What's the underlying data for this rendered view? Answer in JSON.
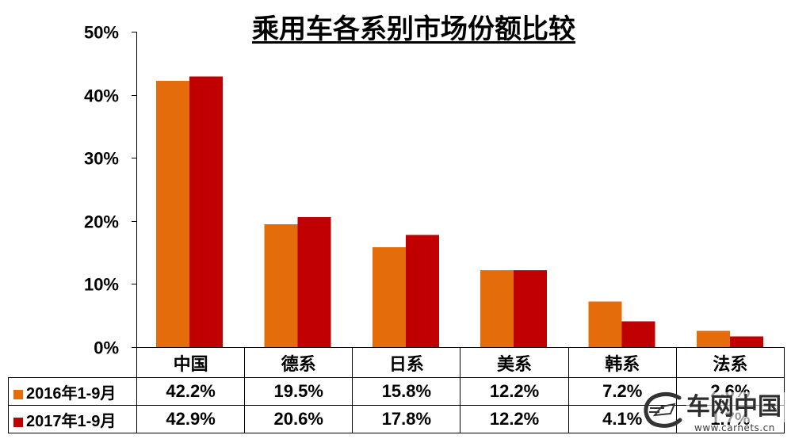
{
  "chart_data": {
    "type": "bar",
    "title": "乘用车各系别市场份额比较",
    "categories": [
      "中国",
      "德系",
      "日系",
      "美系",
      "韩系",
      "法系"
    ],
    "series": [
      {
        "name": "2016年1-9月",
        "color": "#E46C0A",
        "values": [
          42.2,
          19.5,
          15.8,
          12.2,
          7.2,
          2.6
        ],
        "labels": [
          "42.2%",
          "19.5%",
          "15.8%",
          "12.2%",
          "7.2%",
          "2.6%"
        ]
      },
      {
        "name": "2017年1-9月",
        "color": "#C00000",
        "values": [
          42.9,
          20.6,
          17.8,
          12.2,
          4.1,
          1.7
        ],
        "labels": [
          "42.9%",
          "20.6%",
          "17.8%",
          "12.2%",
          "4.1%",
          "1.7%"
        ]
      }
    ],
    "xlabel": "",
    "ylabel": "",
    "ylim": [
      0,
      50
    ],
    "yticks": [
      0,
      10,
      20,
      30,
      40,
      50
    ],
    "ytick_labels": [
      "0%",
      "10%",
      "20%",
      "30%",
      "40%",
      "50%"
    ],
    "grid": false,
    "legend": "bottom-left"
  },
  "watermark": {
    "logo_text": "车网中国",
    "url": "www.carnets.cn"
  }
}
